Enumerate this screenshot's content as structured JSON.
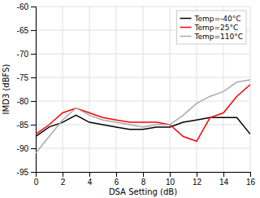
{
  "chart_data": {
    "type": "line",
    "xlabel": "DSA Setting (dB)",
    "ylabel": "IMD3 (dBFS)",
    "x": [
      0,
      1,
      2,
      3,
      4,
      5,
      6,
      7,
      8,
      9,
      10,
      11,
      12,
      13,
      14,
      15,
      16
    ],
    "series": [
      {
        "name": "Temp=-40°C",
        "color": "#000000",
        "values": [
          -87.5,
          -85.5,
          -84.5,
          -83.0,
          -84.5,
          -85.0,
          -85.5,
          -86.0,
          -86.0,
          -85.5,
          -85.5,
          -84.5,
          -84.0,
          -83.5,
          -83.5,
          -83.5,
          -87.0
        ]
      },
      {
        "name": "Temp=25°C",
        "color": "#ff0000",
        "values": [
          -87.0,
          -85.0,
          -82.5,
          -81.5,
          -82.5,
          -83.5,
          -84.0,
          -84.5,
          -84.5,
          -84.5,
          -85.0,
          -87.5,
          -88.5,
          -83.5,
          -82.5,
          -79.0,
          -76.5
        ]
      },
      {
        "name": "Temp=110°C",
        "color": "#aaaaaa",
        "values": [
          -91.0,
          -87.5,
          -84.0,
          -81.5,
          -83.0,
          -84.0,
          -84.5,
          -85.0,
          -85.5,
          -85.0,
          -85.0,
          -83.0,
          -80.5,
          -79.0,
          -78.0,
          -76.0,
          -75.5
        ]
      }
    ],
    "xlim": [
      0,
      16
    ],
    "ylim": [
      -95,
      -60
    ],
    "xticks": [
      0,
      2,
      4,
      6,
      8,
      10,
      12,
      14,
      16
    ],
    "yticks": [
      -95,
      -90,
      -85,
      -80,
      -75,
      -70,
      -65,
      -60
    ],
    "grid": true,
    "legend": "upper right"
  }
}
